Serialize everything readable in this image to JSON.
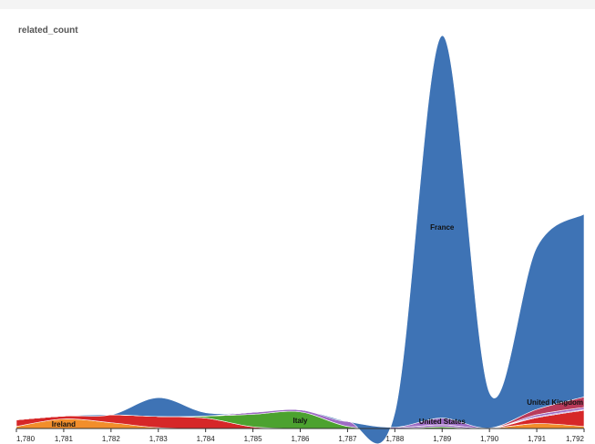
{
  "chart_data": {
    "type": "area",
    "ylabel": "related_count",
    "xlabel": "",
    "x_tick_labels": [
      "1,780",
      "1,781",
      "1,782",
      "1,783",
      "1,784",
      "1,785",
      "1,786",
      "1,787",
      "1,788",
      "1,789",
      "1,790",
      "1,791",
      "1,792"
    ],
    "x": [
      1780,
      1781,
      1782,
      1783,
      1784,
      1785,
      1786,
      1787,
      1788,
      1789,
      1790,
      1791,
      1792
    ],
    "xlim": [
      1780,
      1792
    ],
    "ylim": [
      0,
      100
    ],
    "grid": false,
    "legend": "none",
    "series": [
      {
        "name": "Ireland",
        "color": "#F28E2B",
        "values": [
          0.5,
          2.3,
          1.4,
          0.2,
          0,
          0,
          0,
          0,
          0,
          0,
          0,
          1.2,
          0.5
        ]
      },
      {
        "name": "",
        "color": "#D62728",
        "values": [
          1.6,
          0.7,
          1.9,
          2.7,
          2.5,
          0.4,
          0,
          0,
          0,
          0,
          0,
          1.4,
          3.9
        ]
      },
      {
        "name": "Italy",
        "color": "#4CA22F",
        "values": [
          0,
          0,
          0,
          0,
          0.5,
          3.0,
          4.0,
          0.5,
          0,
          0.4,
          0,
          0,
          0
        ]
      },
      {
        "name": "",
        "color": "#9E6CC4",
        "values": [
          0,
          0,
          0,
          0,
          0,
          0.5,
          0.5,
          1.2,
          0.3,
          0.5,
          0.1,
          0.2,
          0.2
        ]
      },
      {
        "name": "United States",
        "color": "#9E6CC4",
        "values": [
          0,
          0,
          0,
          0,
          0,
          0,
          0,
          0,
          0,
          1.6,
          0,
          0.5,
          0.5
        ]
      },
      {
        "name": "United Kingdom",
        "color": "#B93A5B",
        "values": [
          0,
          0,
          0,
          0,
          0,
          0,
          0,
          0,
          0,
          0,
          0,
          1.3,
          2.5
        ]
      },
      {
        "name": "France",
        "color": "#3E73B5",
        "values": [
          0,
          0,
          0,
          4.5,
          0.8,
          0,
          0,
          0,
          3.5,
          92.0,
          8.5,
          39.0,
          44.0
        ]
      }
    ]
  }
}
